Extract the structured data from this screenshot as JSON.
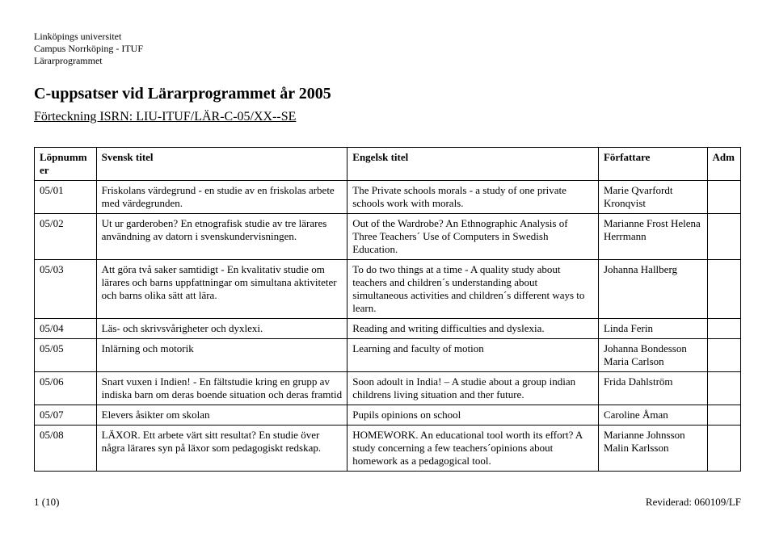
{
  "header": {
    "line1": "Linköpings universitet",
    "line2": "Campus Norrköping - ITUF",
    "line3": "Lärarprogrammet"
  },
  "title": "C-uppsatser vid Lärarprogrammet år 2005",
  "subtitle": "Förteckning ISRN: LIU-ITUF/LÄR-C-05/XX--SE",
  "columns": {
    "lop": "Löpnummer",
    "sv": "Svensk titel",
    "en": "Engelsk titel",
    "au": "Författare",
    "adm": "Adm"
  },
  "rows": [
    {
      "lop": "05/01",
      "sv": "Friskolans värdegrund - en studie av en friskolas arbete med värdegrunden.",
      "en": "The Private schools morals - a study of one private schools work with morals.",
      "au": "Marie Qvarfordt Kronqvist",
      "adm": ""
    },
    {
      "lop": "05/02",
      "sv": "Ut ur garderoben? En etnografisk studie av tre lärares användning av datorn i svenskundervisningen.",
      "en": "Out of the Wardrobe? An Ethnographic Analysis of Three Teachers´ Use of Computers in Swedish Education.",
      "au": "Marianne Frost Helena Herrmann",
      "adm": ""
    },
    {
      "lop": "05/03",
      "sv": "Att göra två saker samtidigt - En kvalitativ studie om lärares och barns uppfattningar om simultana aktiviteter och barns olika sätt att lära.",
      "en": "To do two things at a time - A quality study about teachers and children´s understanding about simultaneous activities and children´s different ways to learn.",
      "au": "Johanna Hallberg",
      "adm": ""
    },
    {
      "lop": "05/04",
      "sv": "Läs- och skrivsvårigheter och dyxlexi.",
      "en": "Reading and writing difficulties and dyslexia.",
      "au": "Linda Ferin",
      "adm": ""
    },
    {
      "lop": "05/05",
      "sv": "Inlärning och motorik",
      "en": "Learning and faculty of motion",
      "au": "Johanna Bondesson Maria Carlson",
      "adm": ""
    },
    {
      "lop": "05/06",
      "sv": "Snart vuxen i Indien! - En fältstudie kring en grupp av indiska barn om deras boende situation och deras framtid",
      "en": "Soon adoult in India! – A studie about a group indian childrens living situation and ther future.",
      "au": "Frida Dahlström",
      "adm": ""
    },
    {
      "lop": "05/07",
      "sv": "Elevers åsikter om skolan",
      "en": "Pupils opinions on school",
      "au": "Caroline Åman",
      "adm": ""
    },
    {
      "lop": "05/08",
      "sv": "LÄXOR. Ett arbete värt sitt resultat? En studie över några lärares syn på läxor som pedagogiskt redskap.",
      "en": "HOMEWORK. An educational tool worth its effort? A study concerning a few teachers´opinions about homework as a pedagogical tool.",
      "au": "Marianne Johnsson Malin Karlsson",
      "adm": ""
    }
  ],
  "footer": {
    "left": "1 (10)",
    "right": "Reviderad: 060109/LF"
  }
}
